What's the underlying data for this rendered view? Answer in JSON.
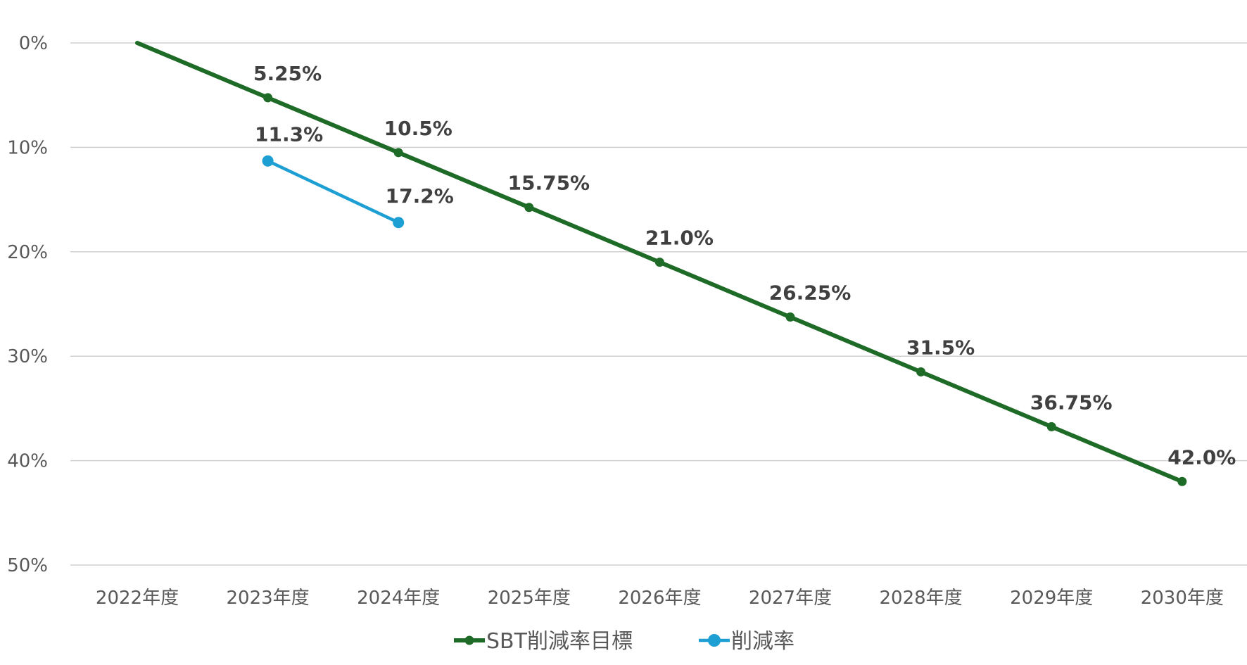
{
  "chart_data": {
    "type": "line",
    "title": "",
    "xlabel": "",
    "ylabel": "",
    "categories": [
      "2022年度",
      "2023年度",
      "2024年度",
      "2025年度",
      "2026年度",
      "2027年度",
      "2028年度",
      "2029年度",
      "2030年度"
    ],
    "y_axis": {
      "min": 0,
      "max": 50,
      "step": 10,
      "inverted": true,
      "tick_labels": [
        "0%",
        "10%",
        "20%",
        "30%",
        "40%",
        "50%"
      ]
    },
    "grid": true,
    "legend_position": "bottom",
    "series": [
      {
        "name": "SBT削減率目標",
        "color": "#1e6b27",
        "values": [
          0,
          5.25,
          10.5,
          15.75,
          21.0,
          26.25,
          31.5,
          36.75,
          42.0
        ],
        "labels": [
          null,
          "5.25%",
          "10.5%",
          "15.75%",
          "21.0%",
          "26.25%",
          "31.5%",
          "36.75%",
          "42.0%"
        ],
        "marker": "small"
      },
      {
        "name": "削減率",
        "color": "#1e9fd4",
        "values": [
          null,
          11.3,
          17.2,
          null,
          null,
          null,
          null,
          null,
          null
        ],
        "labels": [
          null,
          "11.3%",
          "17.2%",
          null,
          null,
          null,
          null,
          null,
          null
        ],
        "marker": "large"
      }
    ]
  }
}
